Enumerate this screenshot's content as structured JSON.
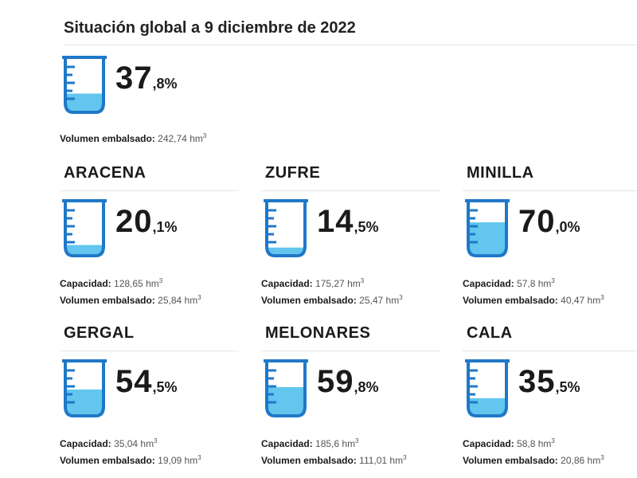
{
  "title": "Situación global a 9 diciembre de 2022",
  "labels": {
    "capacity": "Capacidad:",
    "volume": "Volumen embalsado:",
    "unit": "hm",
    "unit_exp": "3",
    "pct_sign": "%"
  },
  "colors": {
    "outline": "#1f78c8",
    "water": "#62c6ee"
  },
  "global": {
    "pct_int": "37",
    "pct_dec": ",8",
    "fill_fraction": 0.378,
    "volume": "242,74"
  },
  "reservoirs": [
    {
      "name": "ARACENA",
      "pct_int": "20",
      "pct_dec": ",1",
      "fill_fraction": 0.201,
      "capacity": "128,65",
      "volume": "25,84"
    },
    {
      "name": "ZUFRE",
      "pct_int": "14",
      "pct_dec": ",5",
      "fill_fraction": 0.145,
      "capacity": "175,27",
      "volume": "25,47"
    },
    {
      "name": "MINILLA",
      "pct_int": "70",
      "pct_dec": ",0",
      "fill_fraction": 0.7,
      "capacity": "57,8",
      "volume": "40,47"
    },
    {
      "name": "GERGAL",
      "pct_int": "54",
      "pct_dec": ",5",
      "fill_fraction": 0.545,
      "capacity": "35,04",
      "volume": "19,09"
    },
    {
      "name": "MELONARES",
      "pct_int": "59",
      "pct_dec": ",8",
      "fill_fraction": 0.598,
      "capacity": "185,6",
      "volume": "111,01"
    },
    {
      "name": "CALA",
      "pct_int": "35",
      "pct_dec": ",5",
      "fill_fraction": 0.355,
      "capacity": "58,8",
      "volume": "20,86"
    }
  ]
}
